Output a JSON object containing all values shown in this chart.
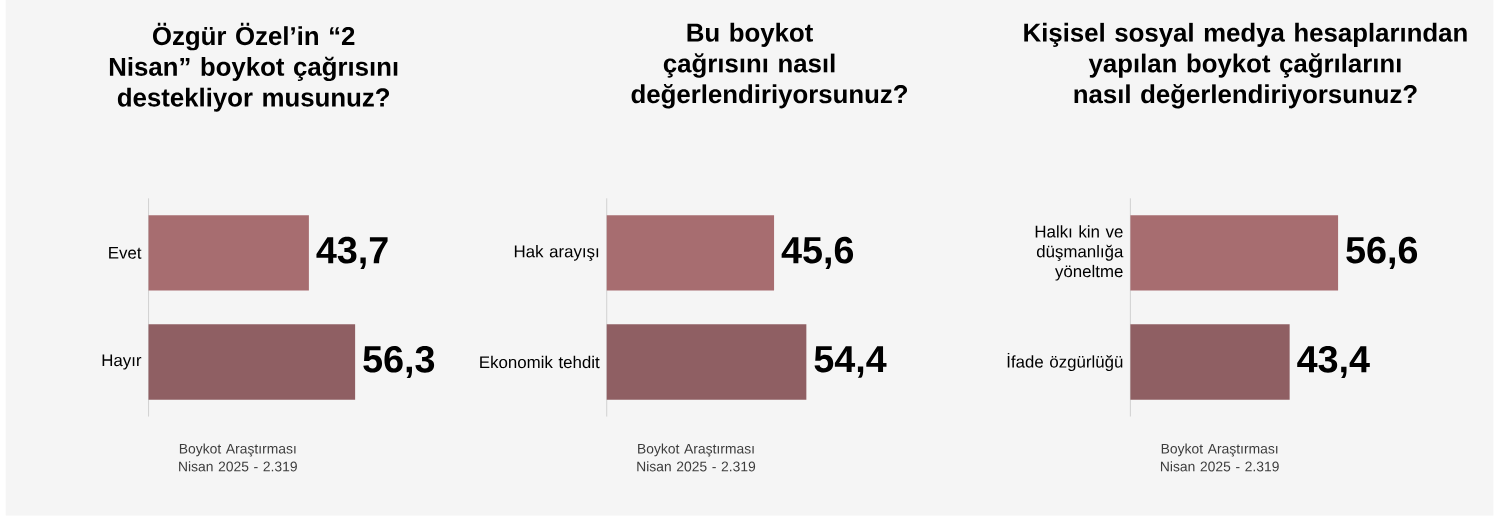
{
  "chart_data": [
    {
      "type": "bar",
      "orientation": "horizontal",
      "title": "Özgür Özel’in “2 Nisan” boykot çağrısını destekliyor musunuz?",
      "categories": [
        "Evet",
        "Hayır"
      ],
      "values": [
        43.7,
        56.3
      ],
      "colors": [
        "#a76d70",
        "#8f5f63"
      ],
      "value_labels": [
        "43,7",
        "56,3"
      ],
      "annotations": [
        "Boykot Araştırması Nisan 2025 - 2.319"
      ]
    },
    {
      "type": "bar",
      "orientation": "horizontal",
      "title": "Bu boykot çağrısını nasıl değerlendiriyorsunuz?",
      "categories": [
        "Hak arayışı",
        "Ekonomik tehdit"
      ],
      "values": [
        45.6,
        54.4
      ],
      "colors": [
        "#a76d70",
        "#8f5f63"
      ],
      "value_labels": [
        "45,6",
        "54,4"
      ],
      "annotations": [
        "Boykot Araştırması Nisan 2025 - 2.319"
      ]
    },
    {
      "type": "bar",
      "orientation": "horizontal",
      "title": "Kişisel sosyal medya hesaplarından yapılan boykot çağrılarını nasıl değerlendiriyorsunuz?",
      "categories": [
        "Halkı kin ve düşmanlığa yöneltme",
        "İfade özgürlüğü"
      ],
      "values": [
        56.6,
        43.4
      ],
      "colors": [
        "#a76d70",
        "#8f5f63"
      ],
      "value_labels": [
        "56,6",
        "43,4"
      ],
      "annotations": [
        "Boykot Araştırması Nisan 2025 - 2.319"
      ]
    }
  ]
}
